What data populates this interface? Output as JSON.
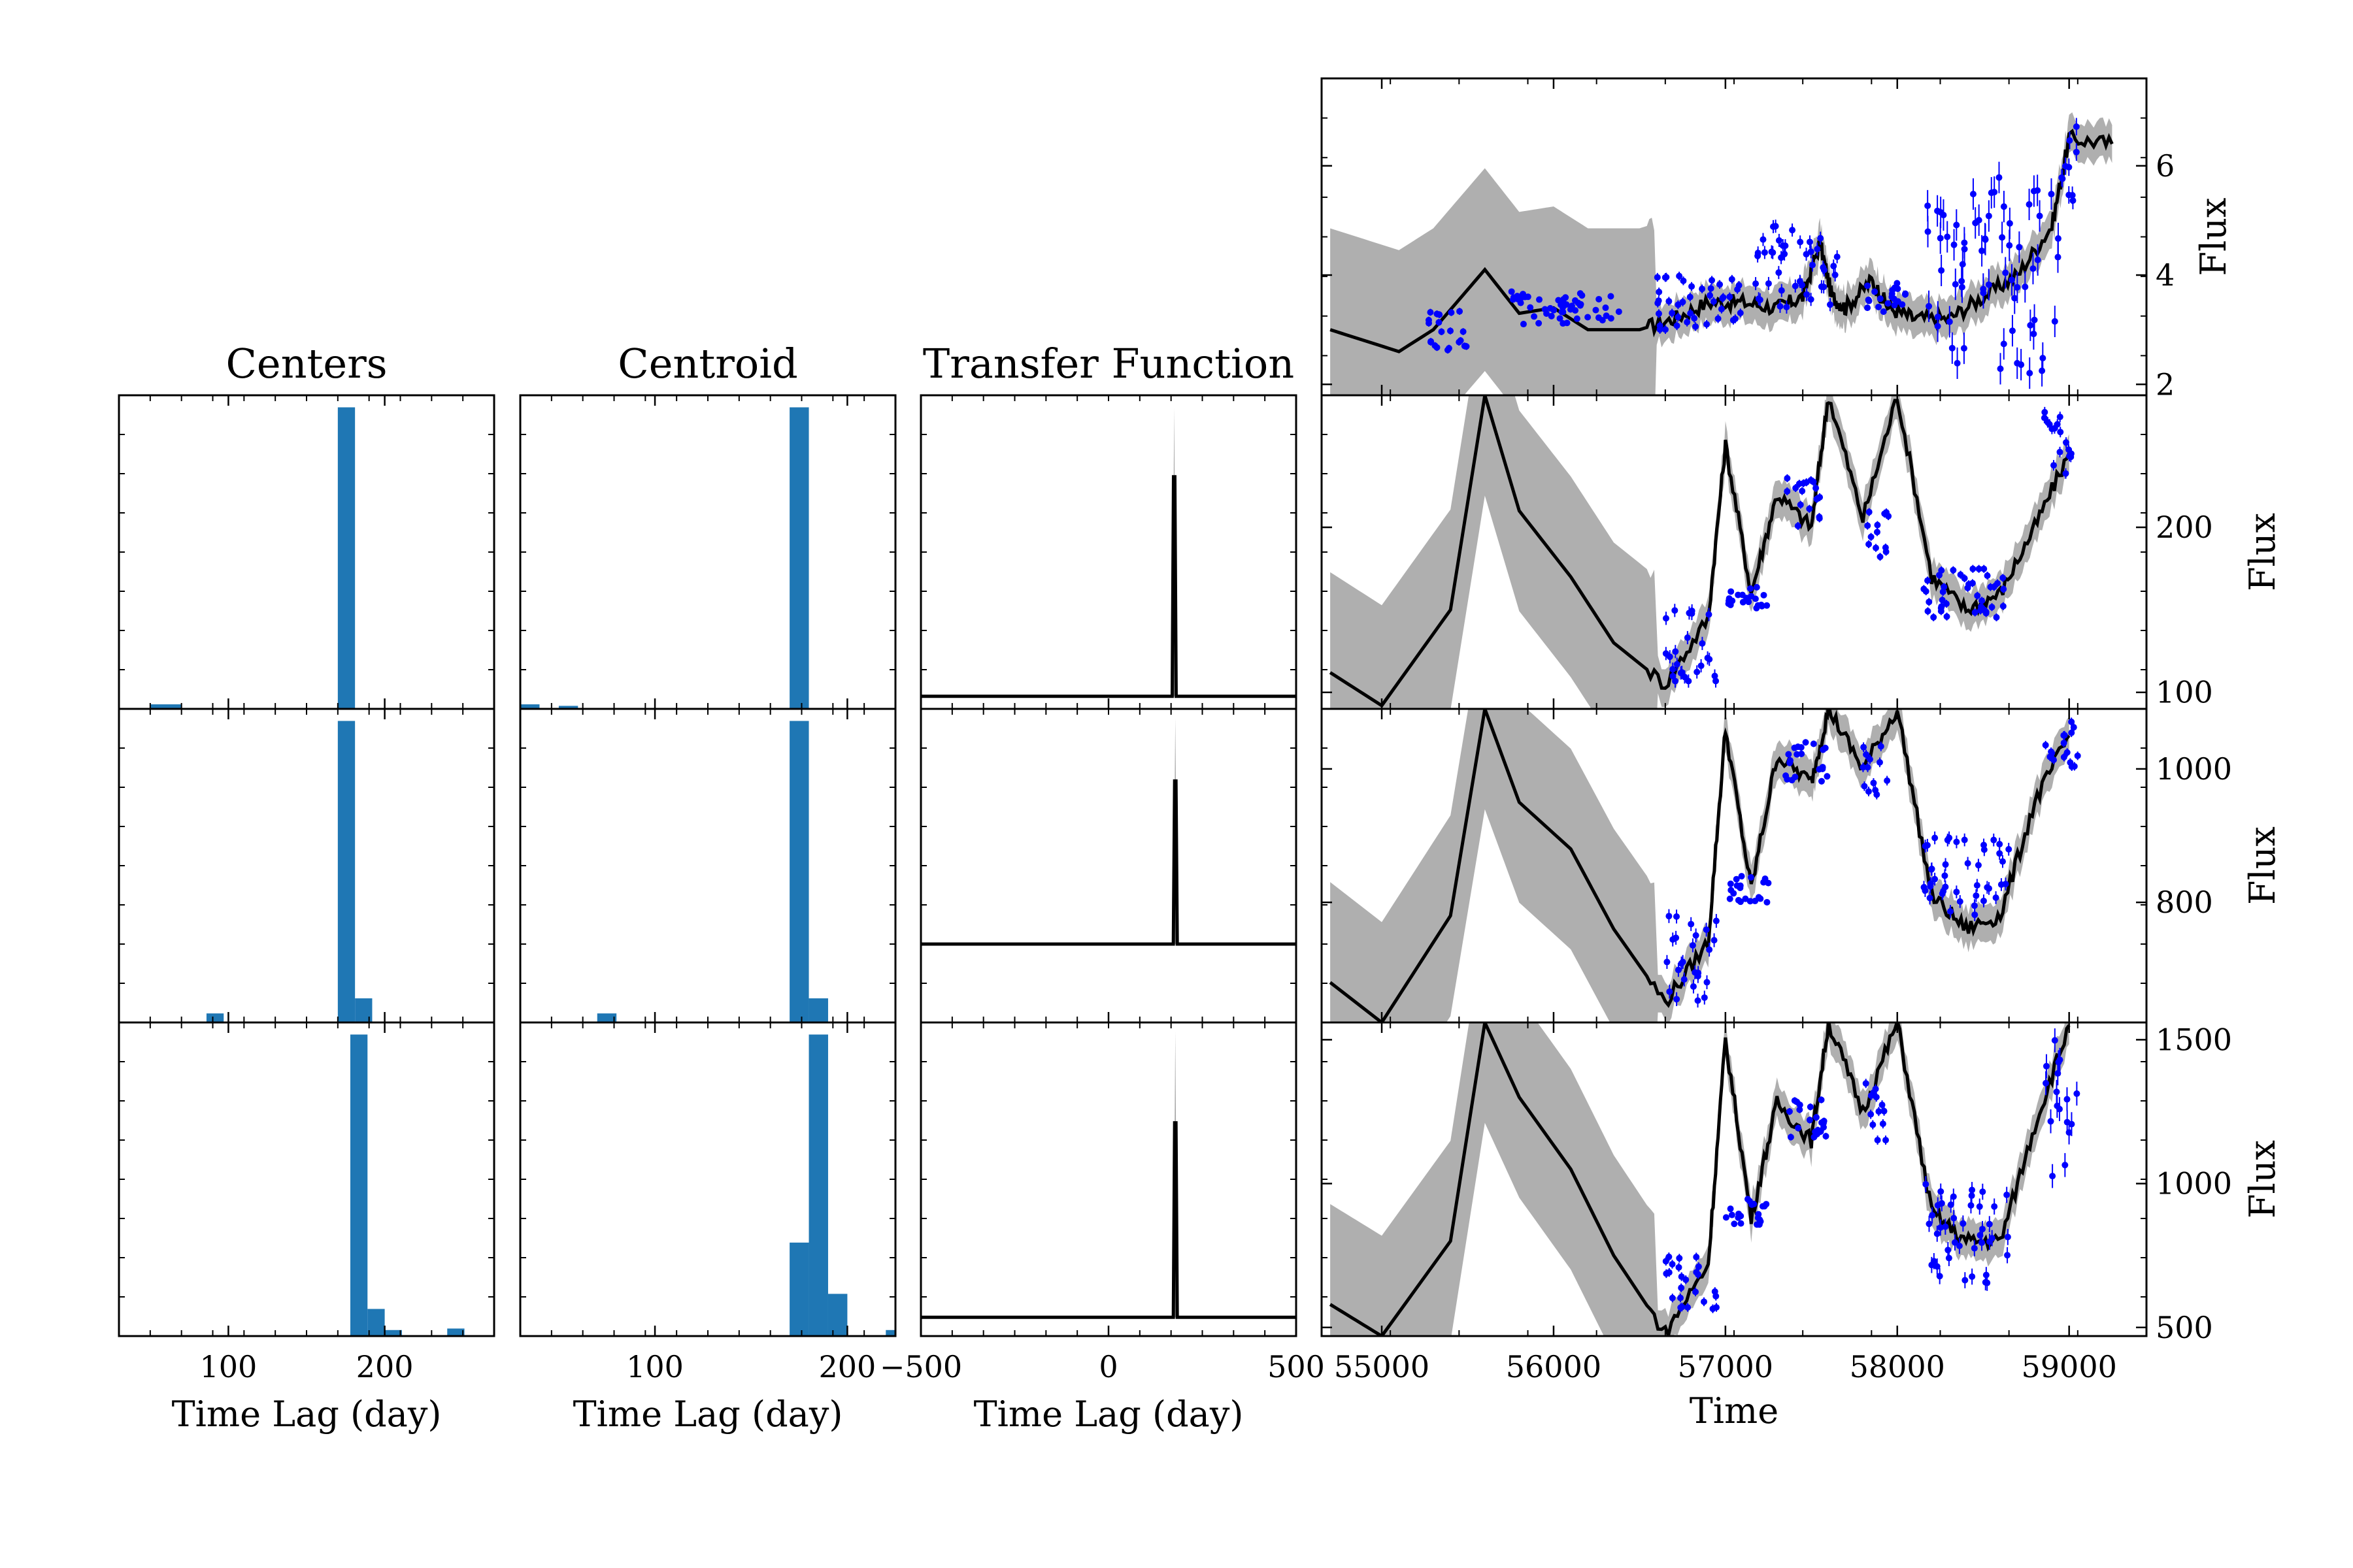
{
  "figure": {
    "colors": {
      "histogram": "#1f77b4",
      "model_line": "#000000",
      "uncertainty_band": "#a6a6a6",
      "observations": "#0000ff"
    }
  },
  "chart_data": [
    {
      "id": "centers",
      "type": "bar",
      "title": "Centers",
      "xlabel": "Time Lag (day)",
      "xlim": [
        30,
        270
      ],
      "xticks": [
        100,
        200
      ],
      "rows": [
        {
          "bins": [
            [
              50,
              70,
              0.015
            ],
            [
              170,
              181,
              1.0
            ]
          ]
        },
        {
          "bins": [
            [
              86,
              97,
              0.03
            ],
            [
              170,
              181,
              1.0
            ],
            [
              181,
              192,
              0.08
            ]
          ]
        },
        {
          "bins": [
            [
              178,
              189,
              1.0
            ],
            [
              189,
              200,
              0.09
            ],
            [
              200,
              211,
              0.02
            ],
            [
              240,
              251,
              0.025
            ]
          ]
        }
      ]
    },
    {
      "id": "centroid",
      "type": "bar",
      "title": "Centroid",
      "xlabel": "Time Lag (day)",
      "xlim": [
        30,
        225
      ],
      "xticks": [
        100,
        200
      ],
      "rows": [
        {
          "bins": [
            [
              30,
              40,
              0.015
            ],
            [
              50,
              60,
              0.01
            ],
            [
              170,
              180,
              1.0
            ]
          ]
        },
        {
          "bins": [
            [
              70,
              80,
              0.03
            ],
            [
              170,
              180,
              1.0
            ],
            [
              180,
              190,
              0.08
            ]
          ]
        },
        {
          "bins": [
            [
              170,
              180,
              0.31
            ],
            [
              180,
              190,
              1.0
            ],
            [
              190,
              200,
              0.14
            ],
            [
              220,
              230,
              0.02
            ]
          ]
        }
      ]
    },
    {
      "id": "transfer",
      "type": "line",
      "title": "Transfer Function",
      "xlabel": "Time Lag (day)",
      "xlim": [
        -500,
        500
      ],
      "xticks": [
        -500,
        0,
        500
      ],
      "xtick_labels": [
        "−500",
        "0",
        "500"
      ],
      "rows": [
        {
          "baseline": 0.04,
          "spike_x": 175,
          "peak": 0.74,
          "band_peak": 0.96
        },
        {
          "baseline": 0.25,
          "spike_x": 178,
          "peak": 0.77,
          "band_peak": 0.97
        },
        {
          "baseline": 0.06,
          "spike_x": 178,
          "peak": 0.68,
          "band_peak": 0.97
        }
      ]
    },
    {
      "id": "light_curves",
      "type": "line",
      "xlabel": "Time",
      "ylabel": "Flux",
      "xlim": [
        54650,
        59450
      ],
      "xticks": [
        55000,
        56000,
        57000,
        58000,
        59000
      ],
      "panels": [
        {
          "name": "continuum",
          "ylim": [
            1.8,
            7.6
          ],
          "yticks": [
            2,
            4,
            6
          ],
          "model": [
            [
              54700,
              3.0
            ],
            [
              55100,
              2.6
            ],
            [
              55300,
              3.0
            ],
            [
              55600,
              4.1
            ],
            [
              55800,
              3.3
            ],
            [
              56000,
              3.4
            ],
            [
              56200,
              3.0
            ],
            [
              56500,
              3.0
            ],
            [
              56700,
              3.2
            ],
            [
              56900,
              3.5
            ],
            [
              57100,
              3.5
            ],
            [
              57300,
              3.4
            ],
            [
              57450,
              3.6
            ],
            [
              57550,
              4.6
            ],
            [
              57620,
              3.6
            ],
            [
              57700,
              3.4
            ],
            [
              57850,
              3.9
            ],
            [
              57950,
              3.4
            ],
            [
              58100,
              3.2
            ],
            [
              58300,
              3.2
            ],
            [
              58500,
              3.6
            ],
            [
              58700,
              4.0
            ],
            [
              58900,
              4.9
            ],
            [
              59000,
              6.5
            ],
            [
              59250,
              6.4
            ]
          ],
          "observation_ranges": [
            [
              55250,
              55500,
              2.6,
              3.4
            ],
            [
              55750,
              56400,
              3.1,
              3.7
            ],
            [
              56600,
              57100,
              3.0,
              4.0
            ],
            [
              57150,
              57650,
              3.4,
              4.9
            ],
            [
              57800,
              58050,
              3.3,
              4.0
            ],
            [
              58150,
              58950,
              2.2,
              5.8
            ],
            [
              58950,
              59050,
              5.0,
              7.0
            ]
          ]
        },
        {
          "name": "line-1",
          "ylim": [
            90,
            280
          ],
          "yticks": [
            100,
            200
          ],
          "model": [
            [
              54700,
              112
            ],
            [
              55000,
              92
            ],
            [
              55400,
              150
            ],
            [
              55600,
              280
            ],
            [
              55800,
              210
            ],
            [
              56100,
              170
            ],
            [
              56350,
              130
            ],
            [
              56650,
              105
            ],
            [
              56900,
              145
            ],
            [
              57000,
              250
            ],
            [
              57150,
              160
            ],
            [
              57300,
              220
            ],
            [
              57500,
              200
            ],
            [
              57600,
              280
            ],
            [
              57800,
              205
            ],
            [
              58000,
              280
            ],
            [
              58200,
              170
            ],
            [
              58400,
              150
            ],
            [
              58600,
              160
            ],
            [
              58800,
              200
            ],
            [
              59000,
              245
            ]
          ],
          "observation_ranges": [
            [
              56650,
              56950,
              100,
              150
            ],
            [
              57000,
              57250,
              150,
              165
            ],
            [
              57350,
              57550,
              200,
              230
            ],
            [
              57800,
              57950,
              180,
              210
            ],
            [
              58150,
              58650,
              145,
              175
            ],
            [
              58850,
              59050,
              230,
              270
            ]
          ]
        },
        {
          "name": "line-2",
          "ylim": [
            620,
            1090
          ],
          "yticks": [
            800,
            1000
          ],
          "model": [
            [
              54700,
              680
            ],
            [
              55000,
              620
            ],
            [
              55400,
              780
            ],
            [
              55600,
              1090
            ],
            [
              55800,
              950
            ],
            [
              56100,
              880
            ],
            [
              56350,
              760
            ],
            [
              56650,
              650
            ],
            [
              56900,
              740
            ],
            [
              57000,
              1060
            ],
            [
              57150,
              820
            ],
            [
              57300,
              1020
            ],
            [
              57500,
              980
            ],
            [
              57600,
              1090
            ],
            [
              57800,
              1000
            ],
            [
              58000,
              1090
            ],
            [
              58200,
              810
            ],
            [
              58400,
              760
            ],
            [
              58600,
              780
            ],
            [
              58800,
              950
            ],
            [
              59000,
              1050
            ]
          ],
          "observation_ranges": [
            [
              56650,
              56950,
              650,
              780
            ],
            [
              57000,
              57250,
              800,
              840
            ],
            [
              57350,
              57600,
              980,
              1040
            ],
            [
              57800,
              57950,
              950,
              1040
            ],
            [
              58150,
              58650,
              780,
              900
            ],
            [
              58850,
              59050,
              1000,
              1080
            ]
          ]
        },
        {
          "name": "line-3",
          "ylim": [
            470,
            1560
          ],
          "yticks": [
            500,
            1000,
            1500
          ],
          "model": [
            [
              54700,
              580
            ],
            [
              55000,
              470
            ],
            [
              55400,
              800
            ],
            [
              55600,
              1560
            ],
            [
              55800,
              1300
            ],
            [
              56100,
              1050
            ],
            [
              56350,
              750
            ],
            [
              56650,
              480
            ],
            [
              56900,
              720
            ],
            [
              57000,
              1500
            ],
            [
              57150,
              880
            ],
            [
              57300,
              1280
            ],
            [
              57500,
              1150
            ],
            [
              57600,
              1560
            ],
            [
              57800,
              1250
            ],
            [
              58000,
              1560
            ],
            [
              58200,
              900
            ],
            [
              58400,
              800
            ],
            [
              58600,
              800
            ],
            [
              58800,
              1200
            ],
            [
              59000,
              1550
            ]
          ],
          "observation_ranges": [
            [
              56650,
              56950,
              560,
              750
            ],
            [
              57000,
              57250,
              850,
              950
            ],
            [
              57350,
              57600,
              1150,
              1300
            ],
            [
              57800,
              57950,
              1150,
              1350
            ],
            [
              58150,
              58650,
              650,
              1000
            ],
            [
              58850,
              59050,
              1000,
              1520
            ]
          ]
        }
      ]
    }
  ]
}
